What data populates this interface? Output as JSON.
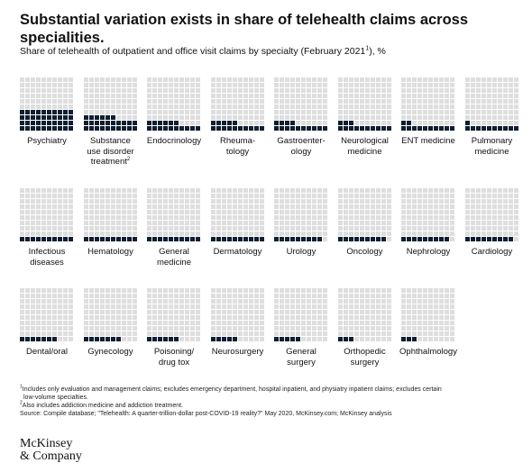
{
  "title": "Substantial variation exists in share of telehealth claims across specialities.",
  "subtitle": {
    "text": "Share of telehealth of outpatient and office visit claims by specialty (February 2021",
    "sup": "1",
    "tail": "), %"
  },
  "chart_data": {
    "type": "waffle",
    "cells_per_chart": 100,
    "categories": [
      {
        "label": "Psychiatry",
        "value": 40
      },
      {
        "label": "Substance use disorder treatment",
        "sup": "2",
        "value": 26
      },
      {
        "label": "Endocrinology",
        "value": 16
      },
      {
        "label": "Rheuma-tology",
        "value": 15
      },
      {
        "label": "Gastroenter-ology",
        "value": 14
      },
      {
        "label": "Neurological medicine",
        "value": 13
      },
      {
        "label": "ENT medicine",
        "value": 12
      },
      {
        "label": "Pulmonary medicine",
        "value": 11
      },
      {
        "label": "Infectious diseases",
        "value": 10
      },
      {
        "label": "Hematology",
        "value": 10
      },
      {
        "label": "General medicine",
        "value": 10
      },
      {
        "label": "Dermatology",
        "value": 10
      },
      {
        "label": "Urology",
        "value": 9
      },
      {
        "label": "Oncology",
        "value": 9
      },
      {
        "label": "Nephrology",
        "value": 9
      },
      {
        "label": "Cardiology",
        "value": 9
      },
      {
        "label": "Dental/oral",
        "value": 7
      },
      {
        "label": "Gynecology",
        "value": 7
      },
      {
        "label": "Poisoning/ drug tox",
        "value": 6
      },
      {
        "label": "Neurosurgery",
        "value": 5
      },
      {
        "label": "General surgery",
        "value": 5
      },
      {
        "label": "Orthopedic surgery",
        "value": 3
      },
      {
        "label": "Ophthalmology",
        "value": 3
      }
    ],
    "colors": {
      "filled": "#0f1e30",
      "empty": "#dedede"
    }
  },
  "footnotes": [
    {
      "sup": "1",
      "text": "Includes only evaluation and management claims; excludes emergency department, hospital inpatient, and physiatry inpatient claims; excludes certain"
    },
    {
      "sup": "",
      "text": "low-volume specialties."
    },
    {
      "sup": "2",
      "text": "Also includes addiction medicine and addiction treatment."
    },
    {
      "sup": "",
      "text": "Source: Compile database; \"Telehealth: A quarter-trillion-dollar post-COVID-19 reality?\" May 2020, McKinsey.com; McKinsey analysis"
    }
  ],
  "logo": {
    "line1": "McKinsey",
    "line2": "& Company"
  }
}
